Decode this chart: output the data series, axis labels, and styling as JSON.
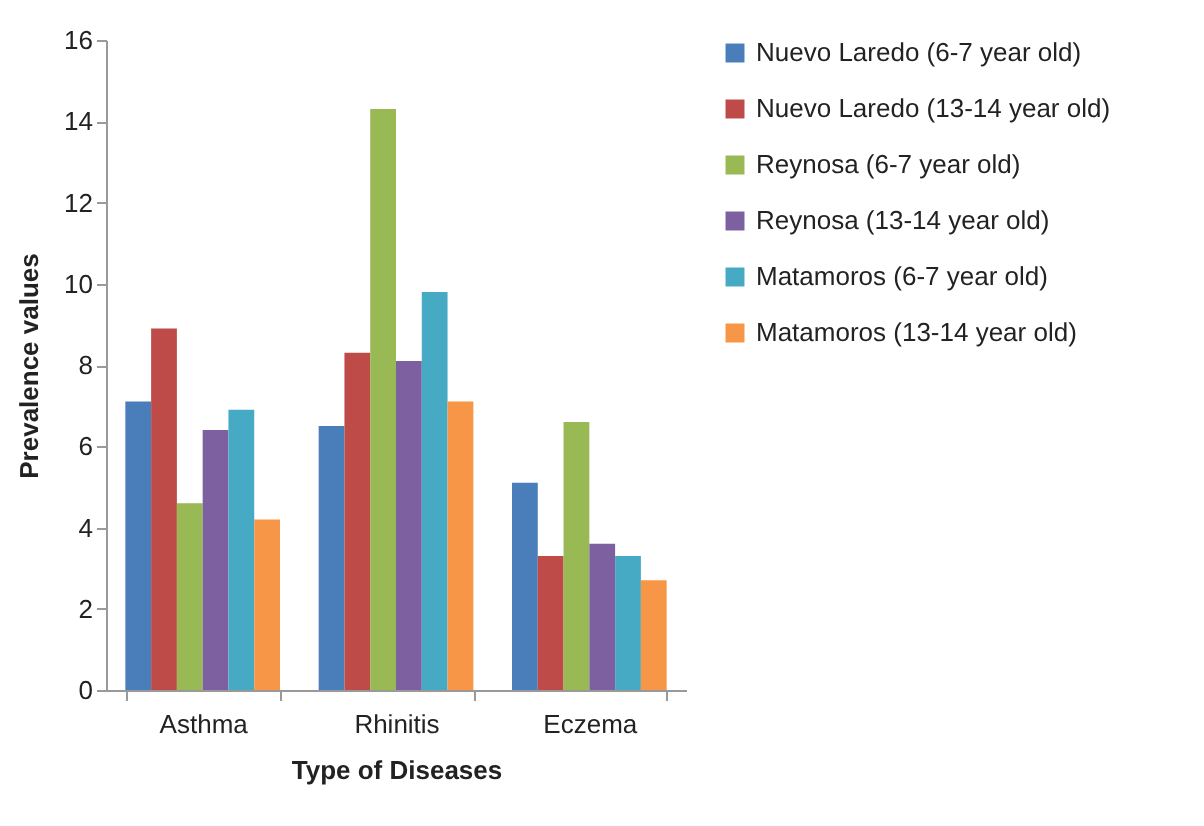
{
  "chart_data": {
    "type": "bar",
    "xlabel": "Type of Diseases",
    "ylabel": "Prevalence values",
    "categories": [
      "Asthma",
      "Rhinitis",
      "Eczema"
    ],
    "series": [
      {
        "name": "Nuevo Laredo (6-7 year old)",
        "color": "#4a7ebb",
        "values": [
          7.1,
          6.5,
          5.1
        ]
      },
      {
        "name": "Nuevo Laredo (13-14 year old)",
        "color": "#be4b48",
        "values": [
          8.9,
          8.3,
          3.3
        ]
      },
      {
        "name": "Reynosa (6-7 year old)",
        "color": "#98b954",
        "values": [
          4.6,
          14.3,
          6.6
        ]
      },
      {
        "name": "Reynosa (13-14 year old)",
        "color": "#7d60a0",
        "values": [
          6.4,
          8.1,
          3.6
        ]
      },
      {
        "name": "Matamoros (6-7 year old)",
        "color": "#46aac5",
        "values": [
          6.9,
          9.8,
          3.3
        ]
      },
      {
        "name": "Matamoros (13-14 year old)",
        "color": "#f79646",
        "values": [
          4.2,
          7.1,
          2.7
        ]
      }
    ],
    "ylim": [
      0,
      16
    ],
    "yticks": [
      0,
      2,
      4,
      6,
      8,
      10,
      12,
      14,
      16
    ],
    "grid": false,
    "legend": "right"
  }
}
